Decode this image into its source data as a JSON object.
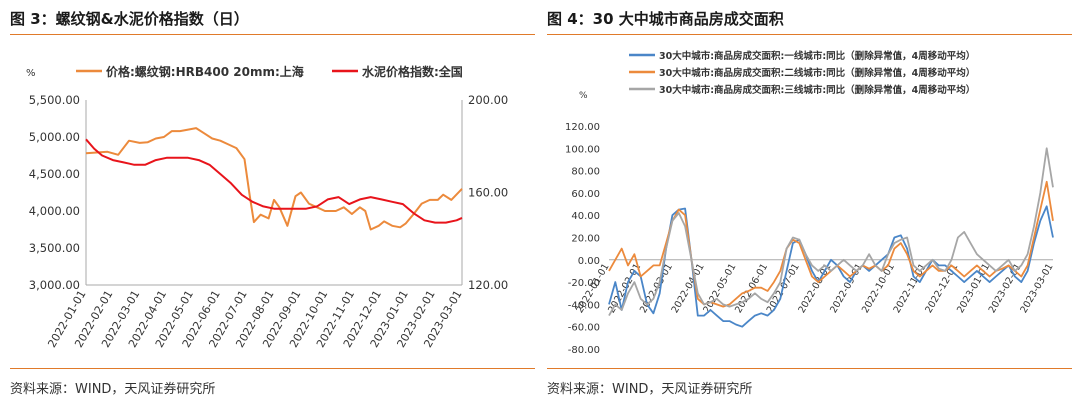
{
  "figures": {
    "left_title": "图 3：螺纹钢&水泥价格指数（日）",
    "right_title": "图 4：30 大中城市商品房成交面积",
    "left_source": "资料来源：WIND，天风证券研究所",
    "right_source": "资料来源：WIND，天风证券研究所"
  },
  "chart_data": [
    {
      "type": "line",
      "unit_label": "%",
      "legend": [
        "价格:螺纹钢:HRB400 20mm:上海",
        "水泥价格指数:全国"
      ],
      "colors": [
        "#ec8a3c",
        "#e8141b"
      ],
      "y_left": {
        "ticks": [
          "5,500.00",
          "5,000.00",
          "4,500.00",
          "4,000.00",
          "3,500.00",
          "3,000.00"
        ],
        "ylim": [
          3000,
          5500
        ]
      },
      "y_right": {
        "ticks": [
          "200.00",
          "160.00",
          "120.00"
        ],
        "ylim": [
          120,
          200
        ]
      },
      "x_ticks": [
        "2022-01-01",
        "2022-02-01",
        "2022-03-01",
        "2022-04-01",
        "2022-05-01",
        "2022-06-01",
        "2022-07-01",
        "2022-08-01",
        "2022-09-01",
        "2022-10-01",
        "2022-11-01",
        "2022-12-01",
        "2023-01-01",
        "2023-02-01",
        "2023-03-01"
      ],
      "series": [
        {
          "name": "价格:螺纹钢:HRB400 20mm:上海",
          "axis": "left",
          "x": [
            0,
            0.4,
            0.8,
            1.2,
            1.6,
            2.0,
            2.3,
            2.6,
            2.9,
            3.2,
            3.5,
            3.8,
            4.1,
            4.4,
            4.7,
            5.0,
            5.3,
            5.6,
            5.9,
            6.1,
            6.25,
            6.5,
            6.8,
            7.0,
            7.2,
            7.5,
            7.8,
            8.0,
            8.3,
            8.6,
            8.9,
            9.0,
            9.3,
            9.6,
            9.9,
            10.2,
            10.4,
            10.6,
            10.9,
            11.1,
            11.4,
            11.7,
            11.9,
            12.2,
            12.5,
            12.8,
            13.1,
            13.3,
            13.6,
            14.0
          ],
          "values": [
            4780,
            4790,
            4800,
            4760,
            4950,
            4920,
            4930,
            4980,
            5000,
            5080,
            5080,
            5100,
            5120,
            5050,
            4980,
            4950,
            4900,
            4850,
            4700,
            4200,
            3850,
            3950,
            3900,
            4150,
            4050,
            3800,
            4200,
            4250,
            4100,
            4050,
            4000,
            4000,
            4000,
            4050,
            3960,
            4050,
            4000,
            3750,
            3800,
            3860,
            3800,
            3780,
            3830,
            3960,
            4100,
            4150,
            4150,
            4220,
            4150,
            4300
          ]
        },
        {
          "name": "水泥价格指数:全国",
          "axis": "right",
          "x": [
            0,
            0.3,
            0.6,
            1.0,
            1.4,
            1.8,
            2.2,
            2.6,
            3.0,
            3.4,
            3.8,
            4.2,
            4.6,
            5.0,
            5.4,
            5.8,
            6.2,
            6.6,
            7.0,
            7.4,
            7.8,
            8.2,
            8.6,
            9.0,
            9.4,
            9.8,
            10.2,
            10.6,
            11.0,
            11.4,
            11.8,
            12.2,
            12.6,
            13.0,
            13.4,
            13.8,
            14.0
          ],
          "values": [
            183,
            179,
            176,
            174,
            173,
            172,
            172,
            174,
            175,
            175,
            175,
            174,
            172,
            168,
            164,
            159,
            156,
            154,
            153,
            153,
            153,
            153,
            154,
            157,
            158,
            155,
            157,
            158,
            157,
            156,
            155,
            151,
            148,
            147,
            147,
            148,
            149
          ]
        }
      ]
    },
    {
      "type": "line",
      "unit_label": "%",
      "legend": [
        "30大中城市:商品房成交面积:一线城市:同比（删除异常值，4周移动平均）",
        "30大中城市:商品房成交面积:二线城市:同比（删除异常值，4周移动平均）",
        "30大中城市:商品房成交面积:三线城市:同比（删除异常值，4周移动平均）"
      ],
      "colors": [
        "#4a86c8",
        "#ec8a3c",
        "#a6a6a6"
      ],
      "y": {
        "ticks": [
          "120.00",
          "100.00",
          "80.00",
          "60.00",
          "40.00",
          "20.00",
          "0.00",
          "-20.00",
          "-40.00",
          "-60.00",
          "-80.00"
        ],
        "ylim": [
          -80,
          120
        ]
      },
      "x_ticks": [
        "2022-01-01",
        "2022-02-01",
        "2022-03-01",
        "2022-04-01",
        "2022-05-01",
        "2022-06-01",
        "2022-07-01",
        "2022-08-01",
        "2022-09-01",
        "2022-10-01",
        "2022-11-01",
        "2022-12-01",
        "2023-01-01",
        "2023-02-01",
        "2023-03-01"
      ],
      "series": [
        {
          "name": "30大中城市:商品房成交面积:一线城市:同比（删除异常值，4周移动平均）",
          "x": [
            0,
            0.2,
            0.4,
            0.6,
            0.8,
            1.0,
            1.2,
            1.4,
            1.6,
            1.8,
            2.0,
            2.2,
            2.4,
            2.6,
            2.8,
            3.0,
            3.2,
            3.4,
            3.6,
            3.8,
            4.0,
            4.2,
            4.4,
            4.6,
            4.8,
            5.0,
            5.2,
            5.4,
            5.6,
            5.8,
            6.0,
            6.2,
            6.4,
            6.6,
            6.8,
            7.0,
            7.2,
            7.4,
            7.6,
            7.8,
            8.0,
            8.2,
            8.4,
            8.6,
            8.8,
            9.0,
            9.2,
            9.4,
            9.6,
            9.8,
            10.0,
            10.2,
            10.4,
            10.6,
            10.8,
            11.0,
            11.2,
            11.4,
            11.6,
            11.8,
            12.0,
            12.2,
            12.4,
            12.6,
            12.8,
            13.0,
            13.2,
            13.4,
            13.6,
            13.8,
            14.0
          ],
          "values": [
            -40,
            -20,
            -45,
            -20,
            -10,
            -15,
            -40,
            -48,
            -30,
            10,
            40,
            45,
            46,
            0,
            -50,
            -50,
            -45,
            -50,
            -55,
            -55,
            -58,
            -60,
            -55,
            -50,
            -48,
            -50,
            -45,
            -35,
            -10,
            15,
            18,
            5,
            -10,
            -20,
            -10,
            0,
            -5,
            -15,
            -20,
            -10,
            -5,
            -10,
            -5,
            0,
            5,
            20,
            22,
            10,
            -15,
            -20,
            -10,
            0,
            -5,
            -5,
            -10,
            -15,
            -20,
            -15,
            -10,
            -15,
            -20,
            -15,
            -10,
            -5,
            -15,
            -20,
            -10,
            15,
            35,
            48,
            20
          ]
        },
        {
          "name": "30大中城市:商品房成交面积:二线城市:同比（删除异常值，4周移动平均）",
          "x": [
            0,
            0.2,
            0.4,
            0.6,
            0.8,
            1.0,
            1.2,
            1.4,
            1.6,
            1.8,
            2.0,
            2.2,
            2.4,
            2.6,
            2.8,
            3.0,
            3.2,
            3.4,
            3.6,
            3.8,
            4.0,
            4.2,
            4.4,
            4.6,
            4.8,
            5.0,
            5.2,
            5.4,
            5.6,
            5.8,
            6.0,
            6.2,
            6.4,
            6.6,
            6.8,
            7.0,
            7.2,
            7.4,
            7.6,
            7.8,
            8.0,
            8.2,
            8.4,
            8.6,
            8.8,
            9.0,
            9.2,
            9.4,
            9.6,
            9.8,
            10.0,
            10.2,
            10.4,
            10.6,
            10.8,
            11.0,
            11.2,
            11.4,
            11.6,
            11.8,
            12.0,
            12.2,
            12.4,
            12.6,
            12.8,
            13.0,
            13.2,
            13.4,
            13.6,
            13.8,
            14.0
          ],
          "values": [
            -10,
            0,
            10,
            -5,
            5,
            -15,
            -10,
            -5,
            -5,
            15,
            35,
            45,
            40,
            0,
            -35,
            -40,
            -38,
            -40,
            -42,
            -40,
            -35,
            -30,
            -28,
            -25,
            -25,
            -28,
            -20,
            -10,
            10,
            18,
            15,
            0,
            -15,
            -20,
            -15,
            -10,
            -5,
            -10,
            -15,
            -10,
            -5,
            -8,
            -5,
            -10,
            -5,
            10,
            15,
            5,
            -10,
            -15,
            -10,
            -5,
            -10,
            -10,
            -5,
            -10,
            -15,
            -10,
            -5,
            -10,
            -15,
            -10,
            -8,
            -5,
            -10,
            -15,
            -5,
            20,
            45,
            70,
            35
          ]
        },
        {
          "name": "30大中城市:商品房成交面积:三线城市:同比（删除异常值，4周移动平均）",
          "x": [
            0,
            0.2,
            0.4,
            0.6,
            0.8,
            1.0,
            1.2,
            1.4,
            1.6,
            1.8,
            2.0,
            2.2,
            2.4,
            2.6,
            2.8,
            3.0,
            3.2,
            3.4,
            3.6,
            3.8,
            4.0,
            4.2,
            4.4,
            4.6,
            4.8,
            5.0,
            5.2,
            5.4,
            5.6,
            5.8,
            6.0,
            6.2,
            6.4,
            6.6,
            6.8,
            7.0,
            7.2,
            7.4,
            7.6,
            7.8,
            8.0,
            8.2,
            8.4,
            8.6,
            8.8,
            9.0,
            9.2,
            9.4,
            9.6,
            9.8,
            10.0,
            10.2,
            10.4,
            10.6,
            10.8,
            11.0,
            11.2,
            11.4,
            11.6,
            11.8,
            12.0,
            12.2,
            12.4,
            12.6,
            12.8,
            13.0,
            13.2,
            13.4,
            13.6,
            13.8,
            14.0
          ],
          "values": [
            -50,
            -40,
            -45,
            -30,
            -20,
            -35,
            -40,
            -35,
            -20,
            10,
            35,
            42,
            30,
            0,
            -30,
            -40,
            -38,
            -35,
            -40,
            -42,
            -40,
            -38,
            -35,
            -30,
            -35,
            -38,
            -30,
            -20,
            10,
            20,
            18,
            5,
            -5,
            -10,
            -5,
            -10,
            -5,
            0,
            -5,
            -10,
            -5,
            5,
            -5,
            -10,
            5,
            15,
            18,
            20,
            -5,
            -10,
            -5,
            0,
            -8,
            -10,
            0,
            20,
            25,
            15,
            5,
            0,
            -5,
            -10,
            -5,
            0,
            -10,
            -5,
            5,
            30,
            60,
            100,
            65
          ]
        }
      ]
    }
  ]
}
